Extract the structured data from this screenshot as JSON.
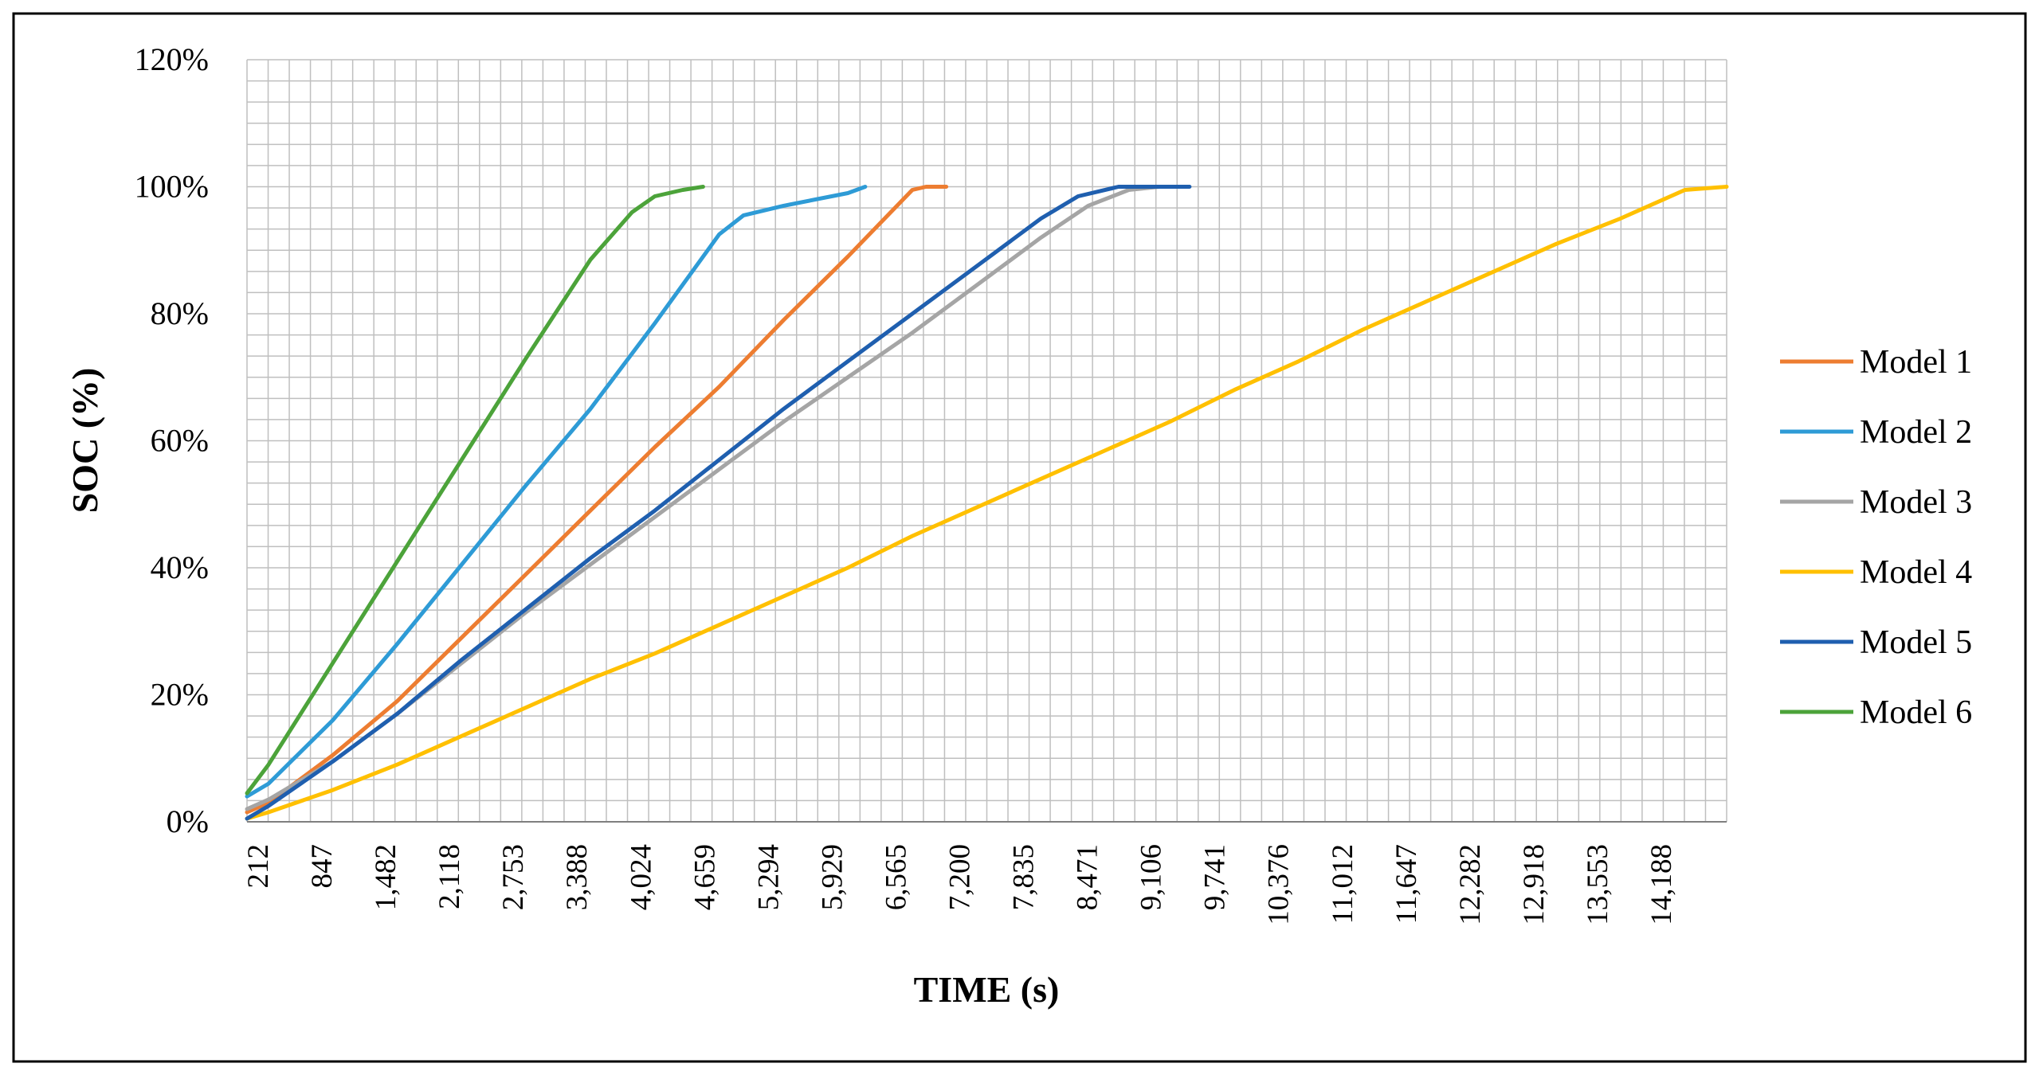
{
  "chart_data": {
    "type": "line",
    "title": "",
    "xlabel": "TIME (s)",
    "ylabel": "SOC (%)",
    "x_tick_labels": [
      "212",
      "847",
      "1,482",
      "2,118",
      "2,753",
      "3,388",
      "4,024",
      "4,659",
      "5,294",
      "5,929",
      "6,565",
      "7,200",
      "7,835",
      "8,471",
      "9,106",
      "9,741",
      "10,376",
      "11,012",
      "11,647",
      "12,282",
      "12,918",
      "13,553",
      "14,188"
    ],
    "xlim": [
      0,
      14600
    ],
    "ylim": [
      0,
      120
    ],
    "y_tick_labels": [
      "0%",
      "20%",
      "40%",
      "60%",
      "80%",
      "100%",
      "120%"
    ],
    "y_ticks": [
      0,
      20,
      40,
      60,
      80,
      100,
      120
    ],
    "grid": true,
    "legend_position": "right",
    "series": [
      {
        "name": "Model 1",
        "color": "#ED7D31",
        "points": [
          [
            0,
            1.5
          ],
          [
            212,
            3
          ],
          [
            847,
            10.5
          ],
          [
            1482,
            19
          ],
          [
            2118,
            29
          ],
          [
            2753,
            39
          ],
          [
            3388,
            49
          ],
          [
            4024,
            59
          ],
          [
            4659,
            68.5
          ],
          [
            5294,
            79
          ],
          [
            5929,
            89
          ],
          [
            6565,
            99.5
          ],
          [
            6700,
            100
          ],
          [
            6900,
            100
          ]
        ]
      },
      {
        "name": "Model 2",
        "color": "#2E9BD6",
        "points": [
          [
            0,
            4
          ],
          [
            212,
            6
          ],
          [
            847,
            16
          ],
          [
            1482,
            28
          ],
          [
            2118,
            40.5
          ],
          [
            2753,
            53
          ],
          [
            3388,
            65
          ],
          [
            4024,
            78.5
          ],
          [
            4659,
            92.5
          ],
          [
            4900,
            95.5
          ],
          [
            5294,
            97
          ],
          [
            5929,
            99
          ],
          [
            6100,
            100
          ]
        ]
      },
      {
        "name": "Model 3",
        "color": "#A5A5A5",
        "points": [
          [
            0,
            2
          ],
          [
            212,
            3.5
          ],
          [
            847,
            9.5
          ],
          [
            1482,
            17
          ],
          [
            2118,
            25
          ],
          [
            2753,
            33
          ],
          [
            3388,
            40.5
          ],
          [
            4024,
            48
          ],
          [
            4659,
            55.5
          ],
          [
            5294,
            63
          ],
          [
            5929,
            70
          ],
          [
            6565,
            77
          ],
          [
            7200,
            84.5
          ],
          [
            7835,
            92
          ],
          [
            8300,
            97
          ],
          [
            8700,
            99.5
          ],
          [
            9000,
            100
          ]
        ]
      },
      {
        "name": "Model 4",
        "color": "#FFC000",
        "points": [
          [
            0,
            0.5
          ],
          [
            212,
            1.5
          ],
          [
            847,
            5
          ],
          [
            1482,
            9
          ],
          [
            2118,
            13.5
          ],
          [
            2753,
            18
          ],
          [
            3388,
            22.5
          ],
          [
            4024,
            26.5
          ],
          [
            4659,
            31
          ],
          [
            5294,
            35.5
          ],
          [
            5929,
            40
          ],
          [
            6565,
            45
          ],
          [
            7200,
            49.5
          ],
          [
            7835,
            54
          ],
          [
            8471,
            58.5
          ],
          [
            9106,
            63
          ],
          [
            9741,
            68
          ],
          [
            10376,
            72.5
          ],
          [
            11012,
            77.5
          ],
          [
            11647,
            82
          ],
          [
            12282,
            86.5
          ],
          [
            12918,
            91
          ],
          [
            13553,
            95
          ],
          [
            14188,
            99.5
          ],
          [
            14600,
            100
          ]
        ]
      },
      {
        "name": "Model 5",
        "color": "#1F5FAF",
        "points": [
          [
            0,
            0.5
          ],
          [
            212,
            2.5
          ],
          [
            847,
            9.5
          ],
          [
            1482,
            17
          ],
          [
            2118,
            25.5
          ],
          [
            2753,
            33.5
          ],
          [
            3388,
            41.5
          ],
          [
            4024,
            49
          ],
          [
            4659,
            57
          ],
          [
            5294,
            65
          ],
          [
            5929,
            72.5
          ],
          [
            6565,
            80
          ],
          [
            7200,
            87.5
          ],
          [
            7835,
            95
          ],
          [
            8200,
            98.5
          ],
          [
            8600,
            100
          ],
          [
            9300,
            100
          ]
        ]
      },
      {
        "name": "Model 6",
        "color": "#4CA33A",
        "points": [
          [
            0,
            4.5
          ],
          [
            212,
            9
          ],
          [
            847,
            25
          ],
          [
            1482,
            41
          ],
          [
            2118,
            57
          ],
          [
            2753,
            73
          ],
          [
            3388,
            88.5
          ],
          [
            3800,
            96
          ],
          [
            4024,
            98.5
          ],
          [
            4300,
            99.5
          ],
          [
            4500,
            100
          ]
        ]
      }
    ]
  }
}
